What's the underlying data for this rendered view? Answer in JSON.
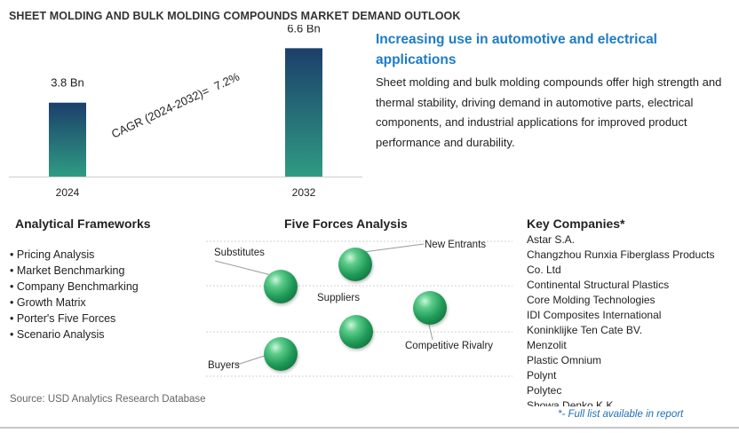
{
  "title": "SHEET MOLDING AND BULK MOLDING COMPOUNDS MARKET DEMAND OUTLOOK",
  "chart_data": {
    "type": "bar",
    "categories": [
      "2024",
      "2032"
    ],
    "values": [
      3.8,
      6.6
    ],
    "value_labels": [
      "3.8 Bn",
      "6.6 Bn"
    ],
    "unit": "Bn",
    "ylim": [
      0,
      7.3
    ],
    "cagr_label": "CAGR (2024-2032)=",
    "cagr_value": "7.2%",
    "bar_gradient": [
      "#1c3f6b",
      "#2f9b83"
    ]
  },
  "highlight": {
    "title": "Increasing use in automotive and electrical applications",
    "body": "Sheet molding and bulk molding compounds offer high strength and thermal stability, driving demand in automotive parts, electrical components, and industrial applications for improved product performance and durability."
  },
  "analytical": {
    "heading": "Analytical Frameworks",
    "items": [
      "Pricing Analysis",
      "Market Benchmarking",
      "Company Benchmarking",
      "Growth Matrix",
      "Porter's Five Forces",
      "Scenario Analysis"
    ]
  },
  "five_forces": {
    "heading": "Five Forces Analysis",
    "labels": {
      "substitutes": "Substitutes",
      "new_entrants": "New Entrants",
      "suppliers": "Suppliers",
      "competitive_rivalry": "Competitive Rivalry",
      "buyers": "Buyers"
    }
  },
  "companies": {
    "heading": "Key Companies*",
    "items": [
      "Astar S.A.",
      "Changzhou Runxia Fiberglass Products Co. Ltd",
      "Continental Structural Plastics",
      "Core Molding Technologies",
      "IDI Composites International",
      "Koninklijke Ten Cate BV.",
      "Menzolit",
      "Plastic Omnium",
      "Polynt",
      "Polytec",
      "Showa Denko K.K."
    ],
    "note": "*- Full list available in report"
  },
  "source": "Source: USD Analytics Research Database"
}
